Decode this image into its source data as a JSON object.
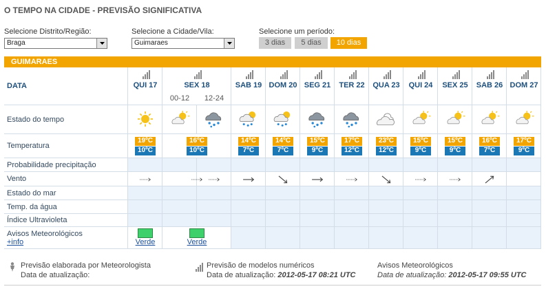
{
  "header": {
    "title": "O TEMPO NA CIDADE - PREVISÃO SIGNIFICATIVA"
  },
  "selectors": {
    "district_label": "Selecione Distrito/Região:",
    "district_value": "Braga",
    "city_label": "Selecione a Cidade/Vila:",
    "city_value": "Guimaraes",
    "period_label": "Selecione um período:",
    "periods": [
      "3 dias",
      "5 dias",
      "10 dias"
    ]
  },
  "table": {
    "location": "GUIMARAES",
    "row_labels": [
      "DATA",
      "Estado do tempo",
      "Temperatura",
      "Probabilidade precipitação",
      "Vento",
      "Estado do mar",
      "Temp. da água",
      "Índice Ultravioleta",
      "Avisos Meteorológicos"
    ],
    "info_link": "+info",
    "days": [
      {
        "label": "QUI 17",
        "max": "19ºC",
        "min": "10ºC",
        "warning": "Verde"
      },
      {
        "label": "SEX 18",
        "parts": [
          "00-12",
          "12-24"
        ],
        "max": "16ºC",
        "min": "10ºC",
        "warning": "Verde"
      },
      {
        "label": "SAB 19",
        "max": "14ºC",
        "min": "7ºC"
      },
      {
        "label": "DOM 20",
        "max": "14ºC",
        "min": "7ºC"
      },
      {
        "label": "SEG 21",
        "max": "15ºC",
        "min": "9ºC"
      },
      {
        "label": "TER 22",
        "max": "17ºC",
        "min": "12ºC"
      },
      {
        "label": "QUA 23",
        "max": "23ºC",
        "min": "12ºC"
      },
      {
        "label": "QUI 24",
        "max": "15ºC",
        "min": "9ºC"
      },
      {
        "label": "SEX 25",
        "max": "15ºC",
        "min": "9ºC"
      },
      {
        "label": "SAB 26",
        "max": "16ºC",
        "min": "7ºC"
      },
      {
        "label": "DOM 27",
        "max": "17ºC",
        "min": "9ºC"
      }
    ]
  },
  "footer": [
    {
      "title": "Previsão elaborada por Meteorologista",
      "update_label": "Data de atualização:"
    },
    {
      "title": "Previsão de modelos numéricos",
      "update_label": "Data de atualização:",
      "update_value": "2012-05-17 08:21 UTC"
    },
    {
      "title": "Avisos Meteorológicos",
      "update_label": "Data de atualização:",
      "update_value": "2012-05-17 09:55 UTC"
    }
  ]
}
